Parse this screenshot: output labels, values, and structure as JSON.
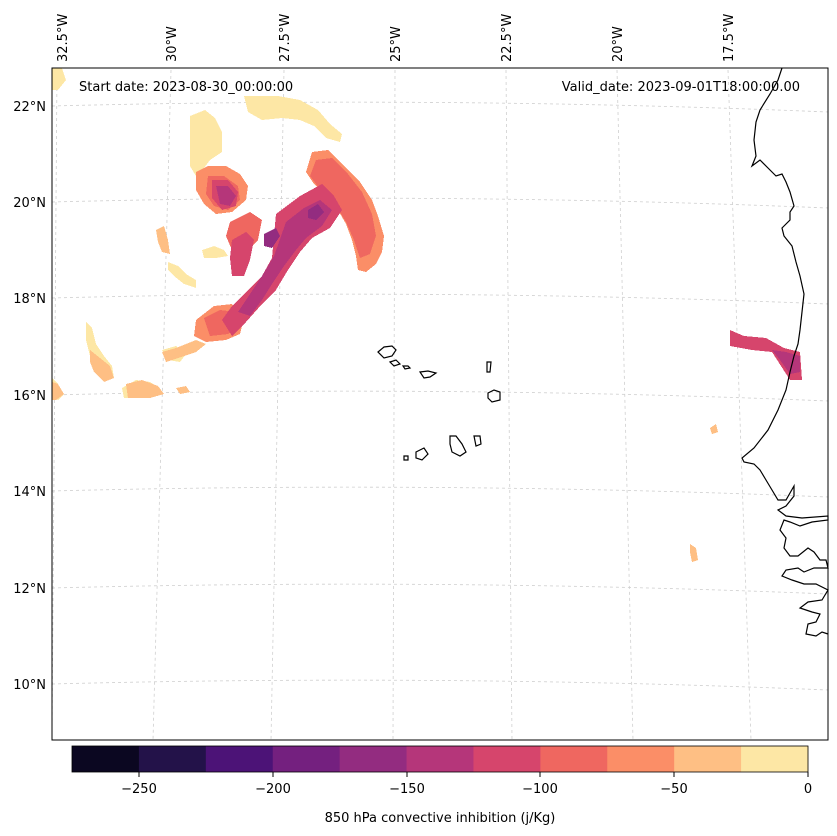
{
  "map": {
    "start_date": "Start date: 2023-08-30_00:00:00",
    "valid_date": "Valid_date: 2023-09-01T18:00:00.00",
    "lon_labels": [
      "32.5°W",
      "30°W",
      "27.5°W",
      "25°W",
      "22.5°W",
      "20°W",
      "17.5°W"
    ],
    "lat_labels": [
      "22°N",
      "20°N",
      "18°N",
      "16°N",
      "14°N",
      "12°N",
      "10°N"
    ]
  },
  "colorbar": {
    "label": "850 hPa convective inhibition (j/Kg)",
    "ticks": [
      "−250",
      "−200",
      "−150",
      "−100",
      "−50",
      "0"
    ],
    "colors": [
      "#0b0721",
      "#231249",
      "#4c1377",
      "#74207f",
      "#932c80",
      "#b5367a",
      "#d6456c",
      "#ef6760",
      "#fb8e67",
      "#febf84",
      "#fde7a5"
    ]
  },
  "colors": {
    "level_0_25": "#fde7a5",
    "level_25_50": "#febf84",
    "level_50_75": "#fb8e67",
    "level_75_100": "#ef6760",
    "level_100_125": "#d6456c",
    "level_125_150": "#b5367a",
    "level_150_175": "#932c80"
  }
}
